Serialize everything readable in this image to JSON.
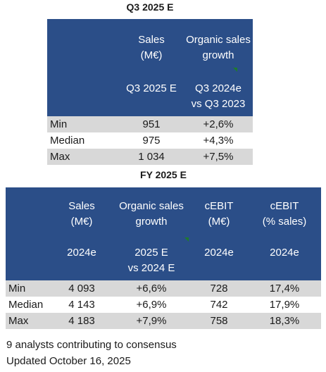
{
  "q3": {
    "title": "Q3 2025 E",
    "col1": {
      "head1": "Sales",
      "head2": "(M€)",
      "sub1": "Q3 2025 E"
    },
    "col2": {
      "head1": "Organic sales",
      "head2": "growth",
      "sub1": "Q3 2024e",
      "sub2": "vs Q3 2023"
    },
    "rows": [
      {
        "label": "Min",
        "sales": "951",
        "growth": "+2,6%"
      },
      {
        "label": "Median",
        "sales": "975",
        "growth": "+4,3%"
      },
      {
        "label": "Max",
        "sales": "1 034",
        "growth": "+7,5%"
      }
    ]
  },
  "fy": {
    "title": "FY 2025 E",
    "col1": {
      "head1": "Sales",
      "head2": "(M€)",
      "sub1": "2024e"
    },
    "col2": {
      "head1": "Organic sales",
      "head2": "growth",
      "sub1": "2025 E",
      "sub2": "vs 2024 E"
    },
    "col3": {
      "head1": "cEBIT",
      "head2": "(M€)",
      "sub1": "2024e"
    },
    "col4": {
      "head1": "cEBIT",
      "head2": "(% sales)",
      "sub1": "2024e"
    },
    "rows": [
      {
        "label": "Min",
        "sales": "4 093",
        "growth": "+6,6%",
        "cebit": "728",
        "cebit_pct": "17,4%"
      },
      {
        "label": "Median",
        "sales": "4 143",
        "growth": "+6,9%",
        "cebit": "742",
        "cebit_pct": "17,9%"
      },
      {
        "label": "Max",
        "sales": "4 183",
        "growth": "+7,9%",
        "cebit": "758",
        "cebit_pct": "18,3%"
      }
    ]
  },
  "footnote": {
    "line1": "9 analysts contributing to consensus",
    "line2": "Updated October 16, 2025"
  },
  "colors": {
    "header_bg": "#2b4e88",
    "shaded_row": "#d8d8d8",
    "comment_flag": "#1f7a2e"
  }
}
